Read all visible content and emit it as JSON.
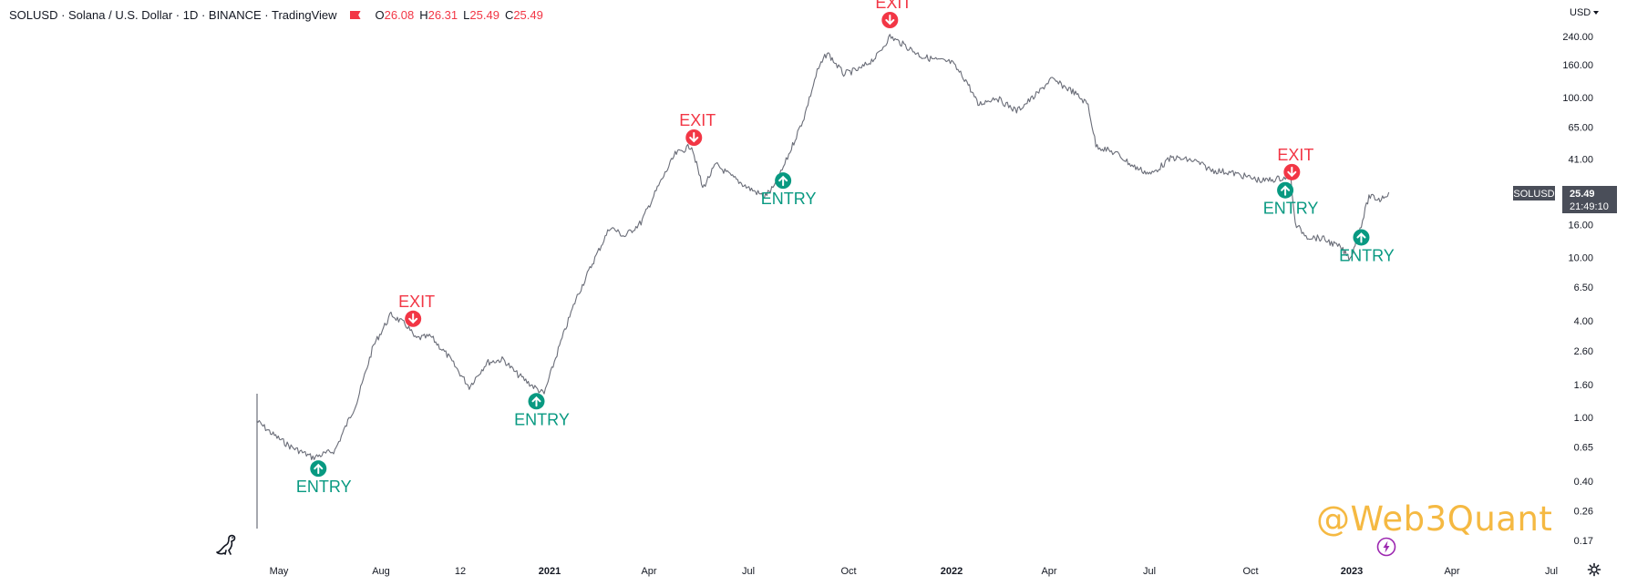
{
  "header": {
    "symbol_line": "SOLUSD · Solana / U.S. Dollar · 1D · BINANCE · TradingView",
    "ohlc": [
      {
        "key": "O",
        "value": "26.08"
      },
      {
        "key": "H",
        "value": "26.31"
      },
      {
        "key": "L",
        "value": "25.49"
      },
      {
        "key": "C",
        "value": "25.49"
      }
    ],
    "currency": "USD"
  },
  "watermark": "@Web3Quant",
  "price_label": {
    "symbol": "SOLUSD",
    "price": "25.49",
    "countdown": "21:49:10"
  },
  "icons": {
    "flag": "flag-icon",
    "logo": "dinosaur-logo-icon",
    "bolt": "lightning-icon",
    "settings": "gear-icon"
  },
  "colors": {
    "exit": "#f23645",
    "entry": "#089981",
    "price_line": "#6a6d78",
    "watermark": "#f5b942",
    "price_label_bg": "#4a4e59"
  },
  "chart_data": {
    "type": "line",
    "scale": "log",
    "x_ticks": [
      "May",
      "Aug",
      "12",
      "2021",
      "Apr",
      "Jul",
      "Oct",
      "2022",
      "Apr",
      "Jul",
      "Oct",
      "2023",
      "Apr",
      "Jul"
    ],
    "y_ticks": [
      "240.00",
      "160.00",
      "100.00",
      "65.00",
      "41.00",
      "16.00",
      "10.00",
      "6.50",
      "4.00",
      "2.60",
      "1.60",
      "1.00",
      "0.65",
      "0.40",
      "0.26",
      "0.17"
    ],
    "x": [
      "2020-04-10",
      "2020-04-25",
      "2020-05-10",
      "2020-05-31",
      "2020-06-20",
      "2020-07-10",
      "2020-07-25",
      "2020-08-10",
      "2020-08-25",
      "2020-09-01",
      "2020-09-15",
      "2020-10-01",
      "2020-10-20",
      "2020-11-05",
      "2020-11-20",
      "2020-12-01",
      "2020-12-15",
      "2020-12-27",
      "2021-01-10",
      "2021-01-25",
      "2021-02-10",
      "2021-02-25",
      "2021-03-10",
      "2021-03-25",
      "2021-04-10",
      "2021-04-25",
      "2021-05-10",
      "2021-05-20",
      "2021-06-01",
      "2021-06-15",
      "2021-07-01",
      "2021-07-15",
      "2021-07-25",
      "2021-08-05",
      "2021-08-20",
      "2021-09-01",
      "2021-09-10",
      "2021-09-25",
      "2021-10-10",
      "2021-10-25",
      "2021-11-06",
      "2021-11-20",
      "2021-12-05",
      "2021-12-20",
      "2022-01-01",
      "2022-01-15",
      "2022-01-25",
      "2022-02-10",
      "2022-03-01",
      "2022-03-20",
      "2022-04-01",
      "2022-04-20",
      "2022-05-05",
      "2022-05-12",
      "2022-06-01",
      "2022-06-15",
      "2022-07-01",
      "2022-07-20",
      "2022-08-10",
      "2022-08-25",
      "2022-09-10",
      "2022-09-25",
      "2022-10-10",
      "2022-10-25",
      "2022-11-05",
      "2022-11-09",
      "2022-11-20",
      "2022-12-05",
      "2022-12-20",
      "2022-12-29",
      "2023-01-08",
      "2023-01-15",
      "2023-01-25",
      "2023-02-02"
    ],
    "series": [
      {
        "values": [
          0.95,
          0.78,
          0.66,
          0.56,
          0.62,
          1.25,
          2.8,
          4.4,
          3.7,
          3.1,
          3.2,
          2.4,
          1.55,
          2.2,
          2.3,
          1.9,
          1.6,
          1.4,
          2.8,
          5.5,
          9.5,
          15.5,
          13.5,
          16.5,
          28,
          44,
          50,
          27,
          38,
          32,
          27,
          24,
          28,
          42,
          75,
          145,
          190,
          140,
          150,
          180,
          240,
          210,
          180,
          170,
          165,
          125,
          90,
          100,
          82,
          105,
          130,
          110,
          90,
          50,
          44,
          37,
          33,
          42,
          40,
          35,
          34,
          32,
          30,
          31,
          32,
          16,
          13.5,
          13,
          11.5,
          9.8,
          16,
          24,
          23,
          25.49
        ]
      }
    ],
    "annotations": [
      {
        "label": "ENTRY",
        "date": "2020-06-05"
      },
      {
        "label": "EXIT",
        "date": "2020-08-30"
      },
      {
        "label": "ENTRY",
        "date": "2020-12-20"
      },
      {
        "label": "EXIT",
        "date": "2021-05-12"
      },
      {
        "label": "ENTRY",
        "date": "2021-08-01"
      },
      {
        "label": "EXIT",
        "date": "2021-11-06"
      },
      {
        "label": "ENTRY",
        "date": "2022-10-31"
      },
      {
        "label": "EXIT",
        "date": "2022-11-06"
      },
      {
        "label": "ENTRY",
        "date": "2023-01-08"
      }
    ],
    "last_price": 25.49,
    "grid": false
  }
}
